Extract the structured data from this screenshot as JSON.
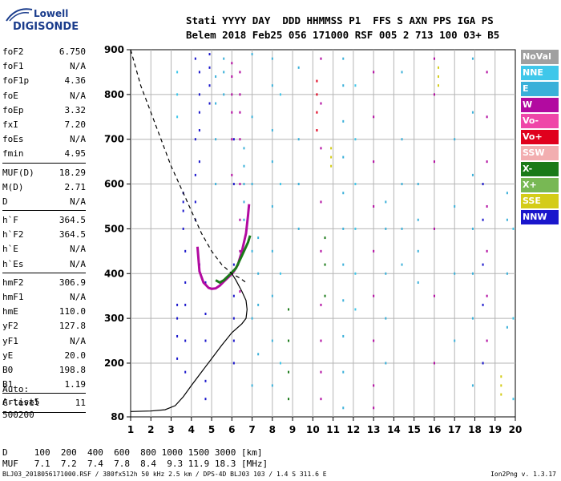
{
  "logo": {
    "line1": "Lowell",
    "line2": "DIGISONDE"
  },
  "header": {
    "line1": "Stati YYYY DAY  DDD HHMMSS P1  FFS S AXN PPS IGA PS",
    "line2": "Belem 2018 Feb25 056 171000 RSF 005 2 713 100 03+ B5"
  },
  "params": [
    {
      "k": "foF2",
      "v": "6.750"
    },
    {
      "k": "foF1",
      "v": "N/A"
    },
    {
      "k": "foF1p",
      "v": "4.36"
    },
    {
      "k": "foE",
      "v": "N/A"
    },
    {
      "k": "foEp",
      "v": "3.32"
    },
    {
      "k": "fxI",
      "v": "7.20"
    },
    {
      "k": "foEs",
      "v": "N/A"
    },
    {
      "k": "fmin",
      "v": "4.95"
    },
    {
      "sep": true
    },
    {
      "k": "MUF(D)",
      "v": "18.29"
    },
    {
      "k": "M(D)",
      "v": "2.71"
    },
    {
      "k": "D",
      "v": "N/A"
    },
    {
      "sep": true
    },
    {
      "k": "h`F",
      "v": "364.5"
    },
    {
      "k": "h`F2",
      "v": "364.5"
    },
    {
      "k": "h`E",
      "v": "N/A"
    },
    {
      "k": "h`Es",
      "v": "N/A"
    },
    {
      "sep": true
    },
    {
      "k": "hmF2",
      "v": "306.9"
    },
    {
      "k": "hmF1",
      "v": "N/A"
    },
    {
      "k": "hmE",
      "v": "110.0"
    },
    {
      "k": "yF2",
      "v": "127.8"
    },
    {
      "k": "yF1",
      "v": "N/A"
    },
    {
      "k": "yE",
      "v": "20.0"
    },
    {
      "k": "B0",
      "v": "198.8"
    },
    {
      "k": "B1",
      "v": "1.19"
    },
    {
      "sep": true
    },
    {
      "k": "C-level",
      "v": "11"
    },
    {
      "sep": true
    }
  ],
  "auto": {
    "line1": "Auto:",
    "line2": "Artist5",
    "line3": "500200"
  },
  "legend": [
    {
      "label": "NoVal",
      "color": "#a0a0a0"
    },
    {
      "label": "NNE",
      "color": "#3fc7ea"
    },
    {
      "label": "E",
      "color": "#3ab0d9"
    },
    {
      "label": "W",
      "color": "#b20aa0"
    },
    {
      "label": "Vo-",
      "color": "#ef46a8"
    },
    {
      "label": "Vo+",
      "color": "#e0001d"
    },
    {
      "label": "SSW",
      "color": "#f2aeb0"
    },
    {
      "label": "X-",
      "color": "#1a7a18"
    },
    {
      "label": "X+",
      "color": "#78b854"
    },
    {
      "label": "SSE",
      "color": "#d4cc18"
    },
    {
      "label": "NNW",
      "color": "#1a16cc"
    }
  ],
  "dmuf": {
    "d_line": "D     100  200  400  600  800 1000 1500 3000 [km]",
    "muf_line": "MUF   7.1  7.2  7.4  7.8  8.4  9.3 11.9 18.3 [MHz]"
  },
  "footer": "BLJ03_2018056171000.RSF / 380fx512h 50 kHz 2.5 km / DPS-4D BLJ03 103 / 1.4 S 311.6 E",
  "version": "Ion2Png v. 1.3.17",
  "chart_data": {
    "type": "scatter",
    "xlim": [
      1,
      20
    ],
    "ylim": [
      80,
      900
    ],
    "x_ticks": [
      "1",
      "2",
      "3",
      "4",
      "5",
      "6",
      "7",
      "8",
      "9",
      "10",
      "11",
      "12",
      "13",
      "14",
      "15",
      "16",
      "17",
      "18",
      "19",
      "20"
    ],
    "y_ticks": [
      "80",
      "200",
      "300",
      "400",
      "500",
      "600",
      "700",
      "800",
      "900"
    ],
    "grid": true,
    "series": [
      {
        "name": "trace_o",
        "color": "#b20aa0",
        "points": [
          [
            4.3,
            460
          ],
          [
            4.4,
            405
          ],
          [
            4.6,
            380
          ],
          [
            4.85,
            368
          ],
          [
            5.0,
            366
          ],
          [
            5.2,
            367
          ],
          [
            5.4,
            373
          ],
          [
            5.6,
            382
          ],
          [
            5.9,
            395
          ],
          [
            6.1,
            405
          ],
          [
            6.3,
            420
          ],
          [
            6.5,
            450
          ],
          [
            6.7,
            490
          ],
          [
            6.8,
            530
          ],
          [
            6.85,
            555
          ]
        ]
      },
      {
        "name": "trace_x",
        "color": "#1a7a18",
        "points": [
          [
            5.2,
            385
          ],
          [
            5.4,
            380
          ],
          [
            5.6,
            385
          ],
          [
            5.9,
            398
          ],
          [
            6.2,
            412
          ],
          [
            6.5,
            440
          ],
          [
            6.8,
            470
          ],
          [
            6.9,
            485
          ]
        ]
      },
      {
        "name": "profile_solid",
        "color": "#000000",
        "points": [
          [
            1.0,
            92
          ],
          [
            2.0,
            93
          ],
          [
            2.7,
            96
          ],
          [
            3.2,
            105
          ],
          [
            3.6,
            125
          ],
          [
            4.0,
            150
          ],
          [
            4.5,
            180
          ],
          [
            5.0,
            210
          ],
          [
            5.5,
            240
          ],
          [
            6.0,
            268
          ],
          [
            6.5,
            288
          ],
          [
            6.7,
            300
          ],
          [
            6.75,
            320
          ],
          [
            6.7,
            340
          ],
          [
            6.5,
            360
          ],
          [
            6.2,
            385
          ],
          [
            6.0,
            400
          ]
        ]
      },
      {
        "name": "profile_dashed",
        "color": "#000000",
        "points": [
          [
            1.0,
            900
          ],
          [
            1.5,
            820
          ],
          [
            2.0,
            760
          ],
          [
            2.5,
            700
          ],
          [
            3.0,
            640
          ],
          [
            3.5,
            590
          ],
          [
            4.0,
            540
          ],
          [
            4.5,
            490
          ],
          [
            5.0,
            450
          ],
          [
            5.5,
            420
          ],
          [
            6.0,
            400
          ],
          [
            6.4,
            390
          ],
          [
            6.7,
            380
          ]
        ]
      }
    ],
    "scatter_columns": [
      {
        "x": 3.3,
        "y": [
          210,
          260,
          300,
          330
        ],
        "color": "#1a16cc"
      },
      {
        "x": 3.6,
        "y": [
          500,
          540,
          560,
          580
        ],
        "color": "#1a16cc"
      },
      {
        "x": 3.7,
        "y": [
          180,
          250,
          330,
          380,
          450
        ],
        "color": "#1a16cc"
      },
      {
        "x": 3.3,
        "y": [
          750,
          800,
          850
        ],
        "color": "#3fc7ea"
      },
      {
        "x": 4.2,
        "y": [
          520,
          560,
          620,
          700,
          880
        ],
        "color": "#1a16cc"
      },
      {
        "x": 4.4,
        "y": [
          420,
          650,
          720,
          760,
          800,
          850
        ],
        "color": "#1a16cc"
      },
      {
        "x": 4.7,
        "y": [
          120,
          160,
          250,
          310,
          380
        ],
        "color": "#1a16cc"
      },
      {
        "x": 4.9,
        "y": [
          780,
          820,
          860,
          890
        ],
        "color": "#1a16cc"
      },
      {
        "x": 5.2,
        "y": [
          600,
          700,
          780,
          840
        ],
        "color": "#3ab0d9"
      },
      {
        "x": 5.6,
        "y": [
          800,
          850,
          880
        ],
        "color": "#3ab0d9"
      },
      {
        "x": 6.0,
        "y": [
          620,
          700,
          760,
          800,
          840,
          870
        ],
        "color": "#b20aa0"
      },
      {
        "x": 6.1,
        "y": [
          200,
          250,
          300,
          350,
          420,
          600,
          700
        ],
        "color": "#1a16cc"
      },
      {
        "x": 6.4,
        "y": [
          360,
          450,
          520,
          600,
          700,
          760,
          800,
          850
        ],
        "color": "#b20aa0"
      },
      {
        "x": 6.6,
        "y": [
          520,
          560,
          600,
          640,
          680
        ],
        "color": "#3ab0d9"
      },
      {
        "x": 7.0,
        "y": [
          150,
          300,
          450,
          600,
          750,
          890
        ],
        "color": "#3ab0d9"
      },
      {
        "x": 7.3,
        "y": [
          220,
          330,
          400,
          480
        ],
        "color": "#3ab0d9"
      },
      {
        "x": 8.0,
        "y": [
          150,
          250,
          350,
          450,
          550,
          650,
          720,
          820,
          880
        ],
        "color": "#3ab0d9"
      },
      {
        "x": 8.4,
        "y": [
          200,
          400,
          600,
          800
        ],
        "color": "#3fc7ea"
      },
      {
        "x": 8.8,
        "y": [
          120,
          180,
          250,
          320
        ],
        "color": "#1a7a18"
      },
      {
        "x": 9.3,
        "y": [
          500,
          600,
          700,
          860
        ],
        "color": "#3ab0d9"
      },
      {
        "x": 10.2,
        "y": [
          720,
          760,
          800,
          830
        ],
        "color": "#e0001d"
      },
      {
        "x": 10.4,
        "y": [
          120,
          180,
          250,
          330,
          450,
          560,
          680,
          780,
          880
        ],
        "color": "#b20aa0"
      },
      {
        "x": 10.6,
        "y": [
          350,
          420,
          480
        ],
        "color": "#1a7a18"
      },
      {
        "x": 10.9,
        "y": [
          640,
          660,
          680
        ],
        "color": "#d4cc18"
      },
      {
        "x": 11.5,
        "y": [
          100,
          180,
          260,
          340,
          420,
          500,
          580,
          660,
          740,
          820,
          880
        ],
        "color": "#3ab0d9"
      },
      {
        "x": 12.1,
        "y": [
          320,
          400,
          500,
          600,
          700,
          820
        ],
        "color": "#3fc7ea"
      },
      {
        "x": 13.0,
        "y": [
          100,
          150,
          250,
          350,
          450,
          550,
          650,
          750,
          850
        ],
        "color": "#b20aa0"
      },
      {
        "x": 13.6,
        "y": [
          200,
          300,
          400,
          500,
          560
        ],
        "color": "#3ab0d9"
      },
      {
        "x": 14.4,
        "y": [
          420,
          500,
          600,
          700,
          850
        ],
        "color": "#3ab0d9"
      },
      {
        "x": 15.2,
        "y": [
          380,
          450,
          520,
          600
        ],
        "color": "#3ab0d9"
      },
      {
        "x": 16.0,
        "y": [
          200,
          350,
          500,
          650,
          800,
          880
        ],
        "color": "#b20aa0"
      },
      {
        "x": 16.2,
        "y": [
          820,
          840,
          860
        ],
        "color": "#d4cc18"
      },
      {
        "x": 17.0,
        "y": [
          250,
          400,
          550,
          700
        ],
        "color": "#3ab0d9"
      },
      {
        "x": 17.9,
        "y": [
          150,
          300,
          400,
          500,
          620,
          760,
          880
        ],
        "color": "#3ab0d9"
      },
      {
        "x": 18.4,
        "y": [
          200,
          330,
          420,
          520,
          600
        ],
        "color": "#1a16cc"
      },
      {
        "x": 18.6,
        "y": [
          250,
          350,
          450,
          550,
          650,
          750,
          850
        ],
        "color": "#b20aa0"
      },
      {
        "x": 19.3,
        "y": [
          130,
          150,
          170
        ],
        "color": "#d4cc18"
      },
      {
        "x": 19.6,
        "y": [
          280,
          400,
          520,
          580
        ],
        "color": "#3ab0d9"
      },
      {
        "x": 19.9,
        "y": [
          120,
          300,
          500
        ],
        "color": "#3fc7ea"
      }
    ]
  }
}
